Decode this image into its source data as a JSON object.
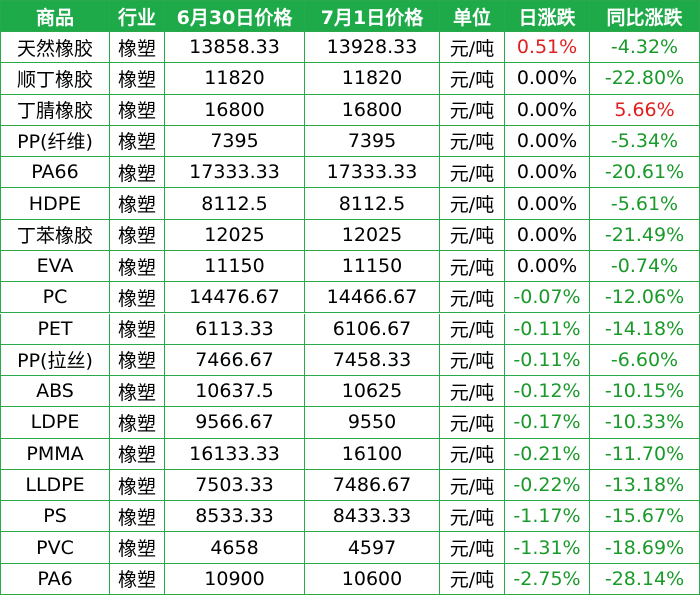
{
  "table": {
    "header": [
      "商品",
      "行业",
      "6月30日价格",
      "7月1日价格",
      "单位",
      "日涨跌",
      "同比涨跌"
    ],
    "rows": [
      [
        "天然橡胶",
        "橡塑",
        "13858.33",
        "13928.33",
        "元/吨",
        "0.51%",
        "-4.32%"
      ],
      [
        "顺丁橡胶",
        "橡塑",
        "11820",
        "11820",
        "元/吨",
        "0.00%",
        "-22.80%"
      ],
      [
        "丁腈橡胶",
        "橡塑",
        "16800",
        "16800",
        "元/吨",
        "0.00%",
        "5.66%"
      ],
      [
        "PP(纤维)",
        "橡塑",
        "7395",
        "7395",
        "元/吨",
        "0.00%",
        "-5.34%"
      ],
      [
        "PA66",
        "橡塑",
        "17333.33",
        "17333.33",
        "元/吨",
        "0.00%",
        "-20.61%"
      ],
      [
        "HDPE",
        "橡塑",
        "8112.5",
        "8112.5",
        "元/吨",
        "0.00%",
        "-5.61%"
      ],
      [
        "丁苯橡胶",
        "橡塑",
        "12025",
        "12025",
        "元/吨",
        "0.00%",
        "-21.49%"
      ],
      [
        "EVA",
        "橡塑",
        "11150",
        "11150",
        "元/吨",
        "0.00%",
        "-0.74%"
      ],
      [
        "PC",
        "橡塑",
        "14476.67",
        "14466.67",
        "元/吨",
        "-0.07%",
        "-12.06%"
      ],
      [
        "PET",
        "橡塑",
        "6113.33",
        "6106.67",
        "元/吨",
        "-0.11%",
        "-14.18%"
      ],
      [
        "PP(拉丝)",
        "橡塑",
        "7466.67",
        "7458.33",
        "元/吨",
        "-0.11%",
        "-6.60%"
      ],
      [
        "ABS",
        "橡塑",
        "10637.5",
        "10625",
        "元/吨",
        "-0.12%",
        "-10.15%"
      ],
      [
        "LDPE",
        "橡塑",
        "9566.67",
        "9550",
        "元/吨",
        "-0.17%",
        "-10.33%"
      ],
      [
        "PMMA",
        "橡塑",
        "16133.33",
        "16100",
        "元/吨",
        "-0.21%",
        "-11.70%"
      ],
      [
        "LLDPE",
        "橡塑",
        "7503.33",
        "7486.67",
        "元/吨",
        "-0.22%",
        "-13.18%"
      ],
      [
        "PS",
        "橡塑",
        "8533.33",
        "8433.33",
        "元/吨",
        "-1.17%",
        "-15.67%"
      ],
      [
        "PVC",
        "橡塑",
        "4658",
        "4597",
        "元/吨",
        "-1.31%",
        "-18.69%"
      ],
      [
        "PA6",
        "橡塑",
        "10900",
        "10600",
        "元/吨",
        "-2.75%",
        "-28.14%"
      ]
    ]
  }
}
